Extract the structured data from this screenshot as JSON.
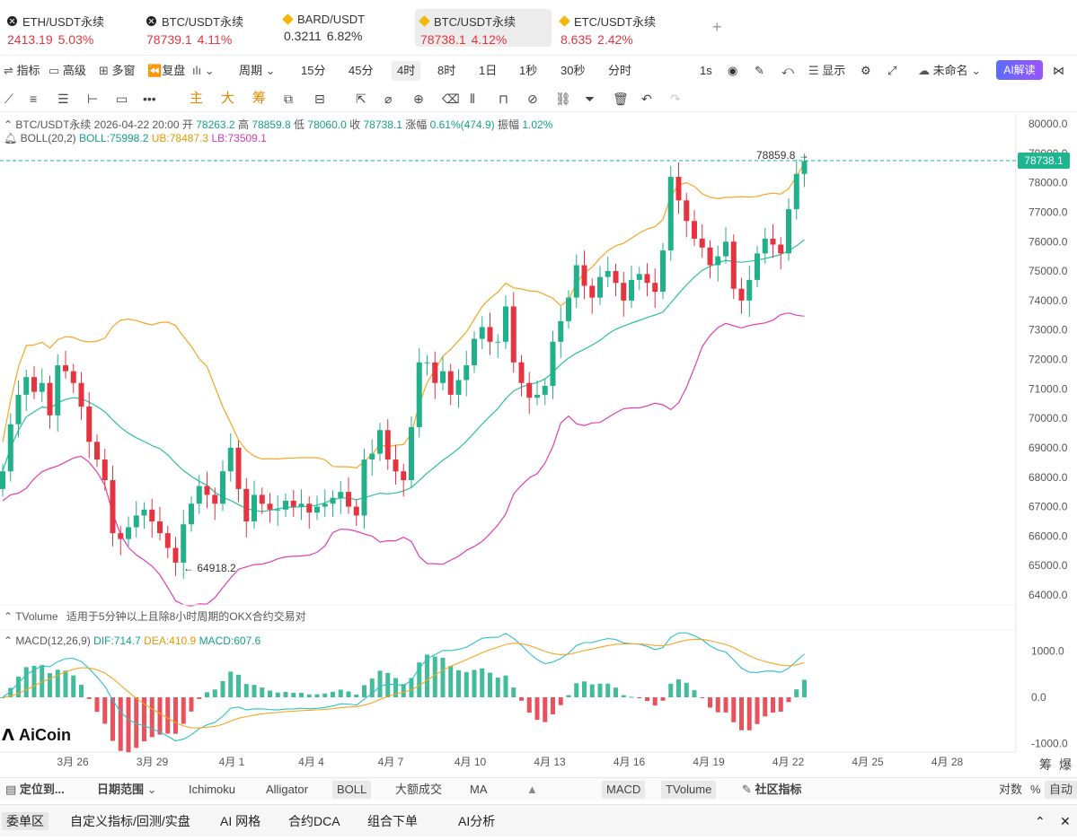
{
  "tickers": [
    {
      "icon": "okx-icon",
      "name": "ETH/USDT永续",
      "price": "2413.19",
      "change": "5.03%"
    },
    {
      "icon": "okx-icon",
      "name": "BTC/USDT永续",
      "price": "78739.1",
      "change": "4.11%"
    },
    {
      "icon": "binance-icon",
      "name": "BARD/USDT",
      "price": "0.3211",
      "change": "6.82%"
    },
    {
      "icon": "binance-icon",
      "name": "BTC/USDT永续",
      "price": "78738.1",
      "change": "4.12%"
    },
    {
      "icon": "binance-icon",
      "name": "ETC/USDT永续",
      "price": "8.635",
      "change": "2.42%"
    }
  ],
  "add_tab": "+",
  "toolbar1": {
    "indicator": "指标",
    "advanced": "高级",
    "multi_window": "多窗",
    "replay": "复盘",
    "period": "周期",
    "intervals": [
      "15分",
      "45分",
      "4时",
      "8时",
      "1日",
      "1秒",
      "30秒",
      "分时"
    ],
    "selected_interval": "4时",
    "interval_1s": "1s",
    "display": "显示",
    "unnamed": "未命名",
    "ai_interpret": "AI解读"
  },
  "toolbar2": {
    "main": "主",
    "big": "大",
    "chip": "筹"
  },
  "chart_info": {
    "symbol": "BTC/USDT永续",
    "datetime": "2026-04-22 20:00",
    "open_label": "开",
    "open": "78263.2",
    "high_label": "高",
    "high": "78859.8",
    "low_label": "低",
    "low": "78060.0",
    "close_label": "收",
    "close": "78738.1",
    "chg_label": "涨幅",
    "chg": "0.61%(474.9)",
    "amp_label": "振幅",
    "amp": "1.02%",
    "boll_name": "BOLL(20,2)",
    "boll": "BOLL:75998.2",
    "ub": "UB:78487.3",
    "lb": "LB:73509.1",
    "tvolume": "TVolume",
    "tvolume_note": "适用于5分钟以上且除8小时周期的OKX合约交易对",
    "macd_name": "MACD(12,26,9)",
    "dif": "DIF:714.7",
    "dea": "DEA:410.9",
    "macd": "MACD:607.6",
    "current_price": "78738.1",
    "high_marker": "78859.8 →",
    "low_marker": "← 64918.2",
    "watermark": "AiCoin"
  },
  "colors": {
    "up": "#22b08a",
    "down": "#e5343f",
    "boll_mid": "#2cc0a0",
    "boll_ub": "#f5a623",
    "boll_lb": "#e040b0"
  },
  "chart_data": {
    "type": "candlestick",
    "price_axis": [
      80000,
      79000,
      78000,
      77000,
      76000,
      75000,
      74000,
      73000,
      72000,
      71000,
      70000,
      69000,
      68000,
      67000,
      66000,
      65000,
      64000
    ],
    "price_tick_labels": [
      "80000.0",
      "79000.0",
      "78000.0",
      "77000.0",
      "76000.0",
      "75000.0",
      "74000.0",
      "73000.0",
      "72000.0",
      "71000.0",
      "70000.0",
      "69000.0",
      "68000.0",
      "67000.0",
      "66000.0",
      "65000.0",
      "64000.0"
    ],
    "macd_axis": [
      1000,
      0,
      -1000
    ],
    "macd_tick_labels": [
      "1000.0",
      "0.0",
      "-1000.0"
    ],
    "date_labels": [
      "3月 26",
      "3月 29",
      "4月 1",
      "4月 4",
      "4月 7",
      "4月 10",
      "4月 13",
      "4月 16",
      "4月 19",
      "4月 22",
      "4月 25",
      "4月 28"
    ],
    "close": [
      68200,
      69800,
      70800,
      71400,
      70900,
      71200,
      70100,
      71800,
      71600,
      71200,
      70400,
      69200,
      68600,
      67900,
      66100,
      65900,
      66300,
      66700,
      66900,
      66500,
      66100,
      65600,
      65100,
      66400,
      67100,
      67700,
      67400,
      67100,
      68200,
      69000,
      67600,
      66500,
      67400,
      67100,
      66900,
      66900,
      67200,
      67000,
      67100,
      66800,
      67000,
      67100,
      67300,
      67500,
      67000,
      66700,
      68600,
      68800,
      69600,
      68600,
      68200,
      67900,
      69700,
      71900,
      71900,
      71200,
      71600,
      70800,
      71300,
      71800,
      72700,
      73100,
      72600,
      72600,
      73800,
      71900,
      71200,
      70700,
      70800,
      71100,
      72600,
      73300,
      74100,
      75200,
      74500,
      74100,
      74800,
      75000,
      74600,
      74000,
      74700,
      74900,
      74600,
      74300,
      75700,
      78200,
      77400,
      76700,
      76100,
      75800,
      75200,
      75500,
      76000,
      74400,
      74000,
      74700,
      75600,
      76100,
      75900,
      75600,
      77100,
      78300,
      78738
    ]
  },
  "bottom1": {
    "locate": "定位到...",
    "date_range": "日期范围",
    "indicators": [
      "Ichimoku",
      "Alligator",
      "BOLL",
      "大额成交",
      "MA"
    ],
    "macd": "MACD",
    "tvolume": "TVolume",
    "community": "社区指标",
    "log": "对数",
    "pct": "%",
    "auto": "自动"
  },
  "bottom2": {
    "tabs": [
      "委单区",
      "自定义指标/回测/实盘",
      "AI 网格",
      "合约DCA",
      "组合下单",
      "AI分析"
    ]
  },
  "right_tags": {
    "chip": "筹",
    "burst": "爆"
  }
}
